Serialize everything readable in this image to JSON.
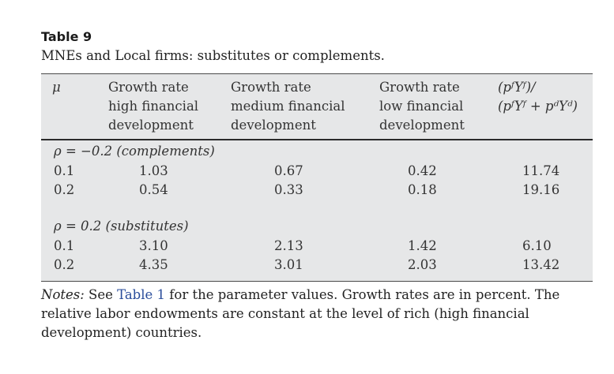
{
  "caption": {
    "label": "Table 9",
    "title": "MNEs and Local firms: substitutes or complements."
  },
  "table": {
    "header": {
      "mu": "μ",
      "col1": [
        "Growth rate",
        "high financial",
        "development"
      ],
      "col2": [
        "Growth rate",
        "medium financial",
        "development"
      ],
      "col3": [
        "Growth rate",
        "low financial",
        "development"
      ],
      "col4": [
        "(pᶠYᶠ)/",
        "(pᶠYᶠ + pᵈYᵈ)"
      ]
    },
    "sections": [
      {
        "label": "ρ = −0.2 (complements)",
        "rows": [
          [
            "0.1",
            "1.03",
            "0.67",
            "0.42",
            "11.74"
          ],
          [
            "0.2",
            "0.54",
            "0.33",
            "0.18",
            "19.16"
          ]
        ]
      },
      {
        "label": "ρ = 0.2 (substitutes)",
        "rows": [
          [
            "0.1",
            "3.10",
            "2.13",
            "1.42",
            "6.10"
          ],
          [
            "0.2",
            "4.35",
            "3.01",
            "2.03",
            "13.42"
          ]
        ]
      }
    ]
  },
  "notes": {
    "lead": "Notes:",
    "pre": " See ",
    "link": "Table 1",
    "post": " for the parameter values. Growth rates are in percent. The relative labor endowments are constant at the level of rich (high financial development) countries."
  },
  "colors": {
    "table_background": "#e6e7e8",
    "link": "#2a4d9b"
  }
}
